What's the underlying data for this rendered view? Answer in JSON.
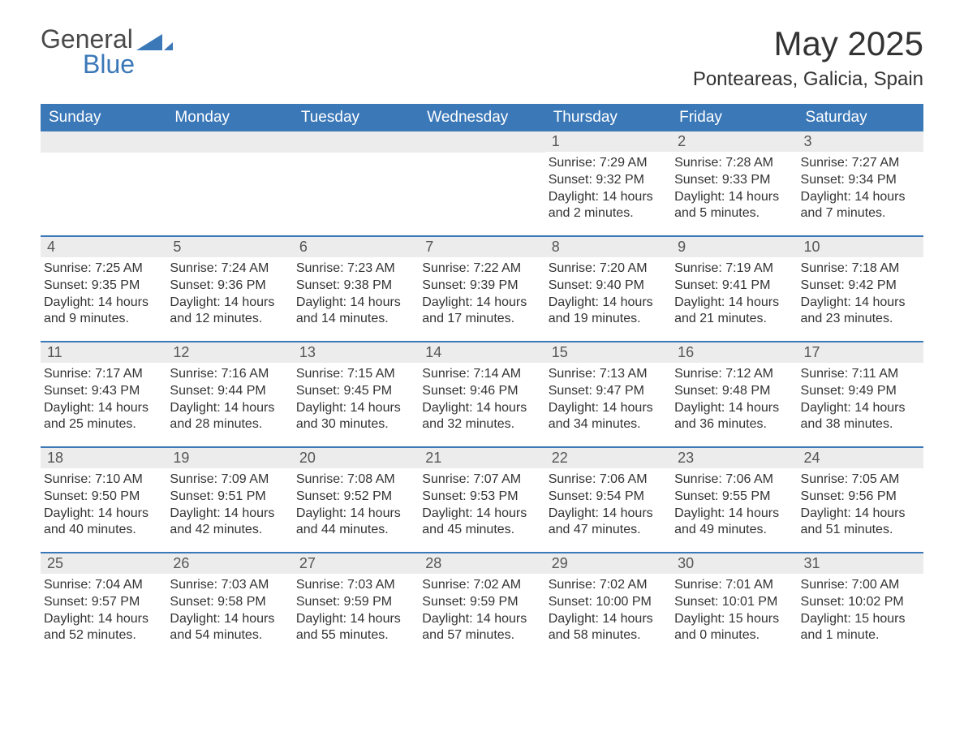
{
  "logo": {
    "text1": "General",
    "text2": "Blue",
    "accent_color": "#3b78b8"
  },
  "title": "May 2025",
  "location": "Ponteareas, Galicia, Spain",
  "weekdays": [
    "Sunday",
    "Monday",
    "Tuesday",
    "Wednesday",
    "Thursday",
    "Friday",
    "Saturday"
  ],
  "colors": {
    "header_bg": "#3b78b8",
    "header_text": "#ffffff",
    "daynum_bg": "#ececec",
    "daynum_text": "#555555",
    "body_text": "#333333",
    "week_border": "#3b78b8",
    "background": "#ffffff"
  },
  "typography": {
    "title_fontsize": 42,
    "location_fontsize": 24,
    "weekday_fontsize": 19,
    "daynum_fontsize": 18,
    "cell_fontsize": 16
  },
  "weeks": [
    [
      {
        "day": null
      },
      {
        "day": null
      },
      {
        "day": null
      },
      {
        "day": null
      },
      {
        "day": "1",
        "sunrise": "Sunrise: 7:29 AM",
        "sunset": "Sunset: 9:32 PM",
        "daylight1": "Daylight: 14 hours",
        "daylight2": "and 2 minutes."
      },
      {
        "day": "2",
        "sunrise": "Sunrise: 7:28 AM",
        "sunset": "Sunset: 9:33 PM",
        "daylight1": "Daylight: 14 hours",
        "daylight2": "and 5 minutes."
      },
      {
        "day": "3",
        "sunrise": "Sunrise: 7:27 AM",
        "sunset": "Sunset: 9:34 PM",
        "daylight1": "Daylight: 14 hours",
        "daylight2": "and 7 minutes."
      }
    ],
    [
      {
        "day": "4",
        "sunrise": "Sunrise: 7:25 AM",
        "sunset": "Sunset: 9:35 PM",
        "daylight1": "Daylight: 14 hours",
        "daylight2": "and 9 minutes."
      },
      {
        "day": "5",
        "sunrise": "Sunrise: 7:24 AM",
        "sunset": "Sunset: 9:36 PM",
        "daylight1": "Daylight: 14 hours",
        "daylight2": "and 12 minutes."
      },
      {
        "day": "6",
        "sunrise": "Sunrise: 7:23 AM",
        "sunset": "Sunset: 9:38 PM",
        "daylight1": "Daylight: 14 hours",
        "daylight2": "and 14 minutes."
      },
      {
        "day": "7",
        "sunrise": "Sunrise: 7:22 AM",
        "sunset": "Sunset: 9:39 PM",
        "daylight1": "Daylight: 14 hours",
        "daylight2": "and 17 minutes."
      },
      {
        "day": "8",
        "sunrise": "Sunrise: 7:20 AM",
        "sunset": "Sunset: 9:40 PM",
        "daylight1": "Daylight: 14 hours",
        "daylight2": "and 19 minutes."
      },
      {
        "day": "9",
        "sunrise": "Sunrise: 7:19 AM",
        "sunset": "Sunset: 9:41 PM",
        "daylight1": "Daylight: 14 hours",
        "daylight2": "and 21 minutes."
      },
      {
        "day": "10",
        "sunrise": "Sunrise: 7:18 AM",
        "sunset": "Sunset: 9:42 PM",
        "daylight1": "Daylight: 14 hours",
        "daylight2": "and 23 minutes."
      }
    ],
    [
      {
        "day": "11",
        "sunrise": "Sunrise: 7:17 AM",
        "sunset": "Sunset: 9:43 PM",
        "daylight1": "Daylight: 14 hours",
        "daylight2": "and 25 minutes."
      },
      {
        "day": "12",
        "sunrise": "Sunrise: 7:16 AM",
        "sunset": "Sunset: 9:44 PM",
        "daylight1": "Daylight: 14 hours",
        "daylight2": "and 28 minutes."
      },
      {
        "day": "13",
        "sunrise": "Sunrise: 7:15 AM",
        "sunset": "Sunset: 9:45 PM",
        "daylight1": "Daylight: 14 hours",
        "daylight2": "and 30 minutes."
      },
      {
        "day": "14",
        "sunrise": "Sunrise: 7:14 AM",
        "sunset": "Sunset: 9:46 PM",
        "daylight1": "Daylight: 14 hours",
        "daylight2": "and 32 minutes."
      },
      {
        "day": "15",
        "sunrise": "Sunrise: 7:13 AM",
        "sunset": "Sunset: 9:47 PM",
        "daylight1": "Daylight: 14 hours",
        "daylight2": "and 34 minutes."
      },
      {
        "day": "16",
        "sunrise": "Sunrise: 7:12 AM",
        "sunset": "Sunset: 9:48 PM",
        "daylight1": "Daylight: 14 hours",
        "daylight2": "and 36 minutes."
      },
      {
        "day": "17",
        "sunrise": "Sunrise: 7:11 AM",
        "sunset": "Sunset: 9:49 PM",
        "daylight1": "Daylight: 14 hours",
        "daylight2": "and 38 minutes."
      }
    ],
    [
      {
        "day": "18",
        "sunrise": "Sunrise: 7:10 AM",
        "sunset": "Sunset: 9:50 PM",
        "daylight1": "Daylight: 14 hours",
        "daylight2": "and 40 minutes."
      },
      {
        "day": "19",
        "sunrise": "Sunrise: 7:09 AM",
        "sunset": "Sunset: 9:51 PM",
        "daylight1": "Daylight: 14 hours",
        "daylight2": "and 42 minutes."
      },
      {
        "day": "20",
        "sunrise": "Sunrise: 7:08 AM",
        "sunset": "Sunset: 9:52 PM",
        "daylight1": "Daylight: 14 hours",
        "daylight2": "and 44 minutes."
      },
      {
        "day": "21",
        "sunrise": "Sunrise: 7:07 AM",
        "sunset": "Sunset: 9:53 PM",
        "daylight1": "Daylight: 14 hours",
        "daylight2": "and 45 minutes."
      },
      {
        "day": "22",
        "sunrise": "Sunrise: 7:06 AM",
        "sunset": "Sunset: 9:54 PM",
        "daylight1": "Daylight: 14 hours",
        "daylight2": "and 47 minutes."
      },
      {
        "day": "23",
        "sunrise": "Sunrise: 7:06 AM",
        "sunset": "Sunset: 9:55 PM",
        "daylight1": "Daylight: 14 hours",
        "daylight2": "and 49 minutes."
      },
      {
        "day": "24",
        "sunrise": "Sunrise: 7:05 AM",
        "sunset": "Sunset: 9:56 PM",
        "daylight1": "Daylight: 14 hours",
        "daylight2": "and 51 minutes."
      }
    ],
    [
      {
        "day": "25",
        "sunrise": "Sunrise: 7:04 AM",
        "sunset": "Sunset: 9:57 PM",
        "daylight1": "Daylight: 14 hours",
        "daylight2": "and 52 minutes."
      },
      {
        "day": "26",
        "sunrise": "Sunrise: 7:03 AM",
        "sunset": "Sunset: 9:58 PM",
        "daylight1": "Daylight: 14 hours",
        "daylight2": "and 54 minutes."
      },
      {
        "day": "27",
        "sunrise": "Sunrise: 7:03 AM",
        "sunset": "Sunset: 9:59 PM",
        "daylight1": "Daylight: 14 hours",
        "daylight2": "and 55 minutes."
      },
      {
        "day": "28",
        "sunrise": "Sunrise: 7:02 AM",
        "sunset": "Sunset: 9:59 PM",
        "daylight1": "Daylight: 14 hours",
        "daylight2": "and 57 minutes."
      },
      {
        "day": "29",
        "sunrise": "Sunrise: 7:02 AM",
        "sunset": "Sunset: 10:00 PM",
        "daylight1": "Daylight: 14 hours",
        "daylight2": "and 58 minutes."
      },
      {
        "day": "30",
        "sunrise": "Sunrise: 7:01 AM",
        "sunset": "Sunset: 10:01 PM",
        "daylight1": "Daylight: 15 hours",
        "daylight2": "and 0 minutes."
      },
      {
        "day": "31",
        "sunrise": "Sunrise: 7:00 AM",
        "sunset": "Sunset: 10:02 PM",
        "daylight1": "Daylight: 15 hours",
        "daylight2": "and 1 minute."
      }
    ]
  ]
}
